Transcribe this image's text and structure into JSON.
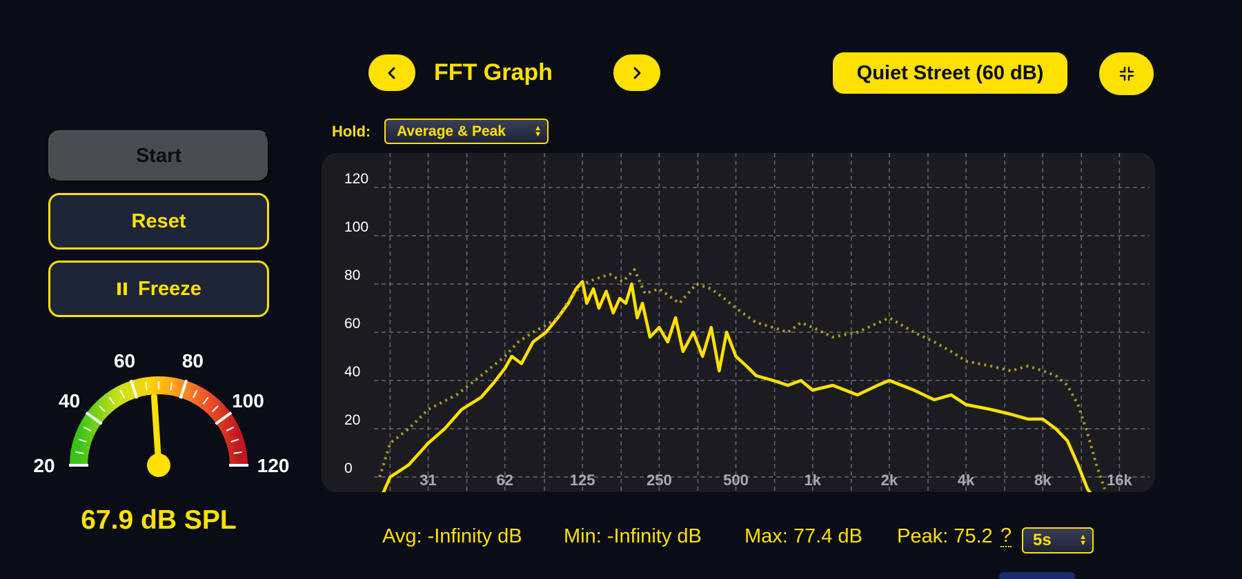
{
  "header": {
    "title": "FFT Graph",
    "prev_icon": "chevron-left-icon",
    "next_icon": "chevron-right-icon",
    "preset_label": "Quiet Street (60 dB)",
    "collapse_icon": "collapse-icon"
  },
  "hold": {
    "label": "Hold:",
    "selected": "Average & Peak"
  },
  "controls": {
    "start_label": "Start",
    "reset_label": "Reset",
    "freeze_label": "Freeze",
    "freeze_icon": "pause-icon"
  },
  "meter": {
    "tick_labels": [
      "20",
      "40",
      "60",
      "80",
      "100",
      "120"
    ],
    "value": 67.9,
    "min": 20,
    "max": 120,
    "readout": "67.9 dB SPL"
  },
  "chart_data": {
    "type": "line",
    "y_ticks": [
      "120",
      "100",
      "80",
      "60",
      "40",
      "20",
      "0"
    ],
    "x_ticks": [
      "31",
      "62",
      "125",
      "250",
      "500",
      "1k",
      "2k",
      "4k",
      "8k",
      "16k"
    ],
    "ylim": [
      -10,
      125
    ],
    "x_scale": "log",
    "xlim_hz": [
      19,
      21000
    ],
    "grid": true,
    "series": [
      {
        "style": "solid",
        "x": [
          20,
          22,
          26,
          31,
          36,
          42,
          50,
          56,
          62,
          66,
          72,
          80,
          90,
          100,
          110,
          118,
          125,
          130,
          138,
          145,
          155,
          165,
          175,
          185,
          195,
          205,
          215,
          230,
          250,
          270,
          290,
          310,
          340,
          370,
          400,
          430,
          460,
          500,
          550,
          600,
          700,
          800,
          900,
          1000,
          1200,
          1500,
          1800,
          2000,
          2500,
          3000,
          3500,
          4000,
          5000,
          6000,
          7000,
          8000,
          9000,
          10000,
          11000,
          12000,
          13000
        ],
        "values": [
          -10,
          0,
          5,
          14,
          20,
          28,
          33,
          39,
          45,
          50,
          47,
          56,
          60,
          66,
          72,
          78,
          81,
          72,
          78,
          70,
          77,
          68,
          74,
          72,
          80,
          66,
          72,
          58,
          62,
          56,
          66,
          52,
          60,
          50,
          62,
          44,
          60,
          50,
          46,
          42,
          40,
          38,
          40,
          36,
          38,
          34,
          38,
          40,
          36,
          32,
          34,
          30,
          28,
          26,
          24,
          24,
          20,
          15,
          5,
          -5,
          -10
        ]
      },
      {
        "style": "dotted",
        "x": [
          20,
          22,
          26,
          31,
          40,
          50,
          62,
          70,
          80,
          90,
          100,
          110,
          125,
          140,
          160,
          180,
          200,
          220,
          250,
          300,
          350,
          400,
          450,
          500,
          600,
          700,
          800,
          900,
          1000,
          1200,
          1500,
          2000,
          2500,
          3000,
          3500,
          4000,
          5000,
          6000,
          7000,
          8000,
          9000,
          10000,
          11000,
          12000,
          13000,
          14000
        ],
        "values": [
          0,
          14,
          20,
          28,
          34,
          42,
          50,
          56,
          60,
          63,
          66,
          73,
          80,
          82,
          84,
          81,
          86,
          76,
          78,
          72,
          80,
          78,
          74,
          70,
          64,
          62,
          60,
          64,
          62,
          58,
          60,
          66,
          60,
          56,
          52,
          48,
          46,
          44,
          46,
          44,
          42,
          38,
          30,
          18,
          5,
          -5
        ]
      }
    ]
  },
  "stats": {
    "avg": "Avg: -Infinity dB",
    "min": "Min: -Infinity dB",
    "max": "Max: 77.4 dB",
    "peak": "Peak: 75.2",
    "help": "?",
    "peak_hold_selected": "5s"
  },
  "colors": {
    "accent": "#ffe100",
    "background": "#0a0d16",
    "panel": "#1c1c20"
  }
}
